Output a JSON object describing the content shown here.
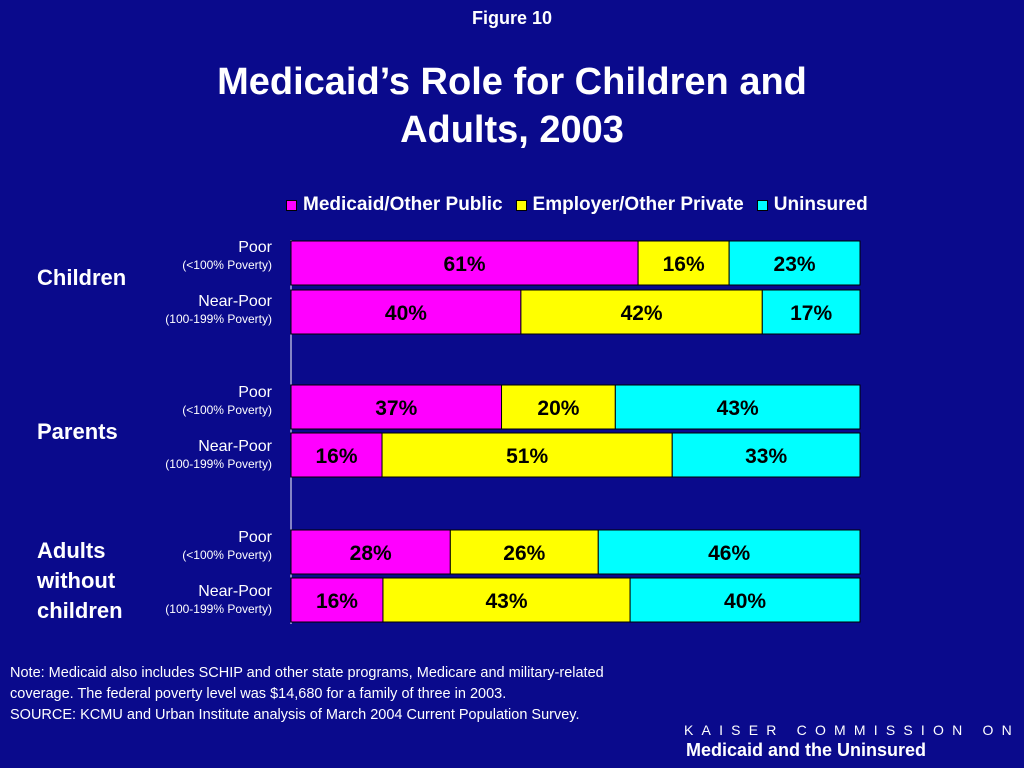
{
  "header": {
    "figure_label": "Figure 10",
    "title_line1": "Medicaid’s Role for Children and",
    "title_line2": "Adults, 2003"
  },
  "colors": {
    "background": "#0a0a8c",
    "medicaid": "#ff00ff",
    "employer": "#ffff00",
    "uninsured": "#00ffff",
    "text": "#ffffff"
  },
  "chart_data": {
    "type": "bar",
    "orientation": "horizontal",
    "stacked": true,
    "normalized": true,
    "xlim": [
      0,
      100
    ],
    "legend_placement": "top",
    "legend": [
      "Medicaid/Other Public",
      "Employer/Other Private",
      "Uninsured"
    ],
    "groups": [
      {
        "label": "Children",
        "rows": [
          {
            "label": "Poor",
            "sublabel": "(<100% Poverty)",
            "values": [
              61,
              16,
              23
            ],
            "data_labels": [
              "61%",
              "16%",
              "23%"
            ]
          },
          {
            "label": "Near-Poor",
            "sublabel": "(100-199% Poverty)",
            "values": [
              40,
              42,
              17
            ],
            "data_labels": [
              "40%",
              "42%",
              "17%"
            ]
          }
        ]
      },
      {
        "label": "Parents",
        "rows": [
          {
            "label": "Poor",
            "sublabel": "(<100% Poverty)",
            "values": [
              37,
              20,
              43
            ],
            "data_labels": [
              "37%",
              "20%",
              "43%"
            ]
          },
          {
            "label": "Near-Poor",
            "sublabel": "(100-199% Poverty)",
            "values": [
              16,
              51,
              33
            ],
            "data_labels": [
              "16%",
              "51%",
              "33%"
            ]
          }
        ]
      },
      {
        "label": "Adults without children",
        "label_lines": [
          "Adults",
          "without",
          "children"
        ],
        "rows": [
          {
            "label": "Poor",
            "sublabel": "(<100% Poverty)",
            "values": [
              28,
              26,
              46
            ],
            "data_labels": [
              "28%",
              "26%",
              "46%"
            ]
          },
          {
            "label": "Near-Poor",
            "sublabel": "(100-199% Poverty)",
            "values": [
              16,
              43,
              40
            ],
            "data_labels": [
              "16%",
              "43%",
              "40%"
            ]
          }
        ]
      }
    ]
  },
  "footer": {
    "note": "Note: Medicaid also includes SCHIP and other state programs, Medicare and military-related coverage. The federal poverty level was $14,680 for a family of three in 2003.",
    "source": "SOURCE: KCMU and Urban Institute analysis of March 2004 Current Population Survey.",
    "org_line1": "KAISER COMMISSION ON",
    "org_line2": "Medicaid and the Uninsured"
  }
}
